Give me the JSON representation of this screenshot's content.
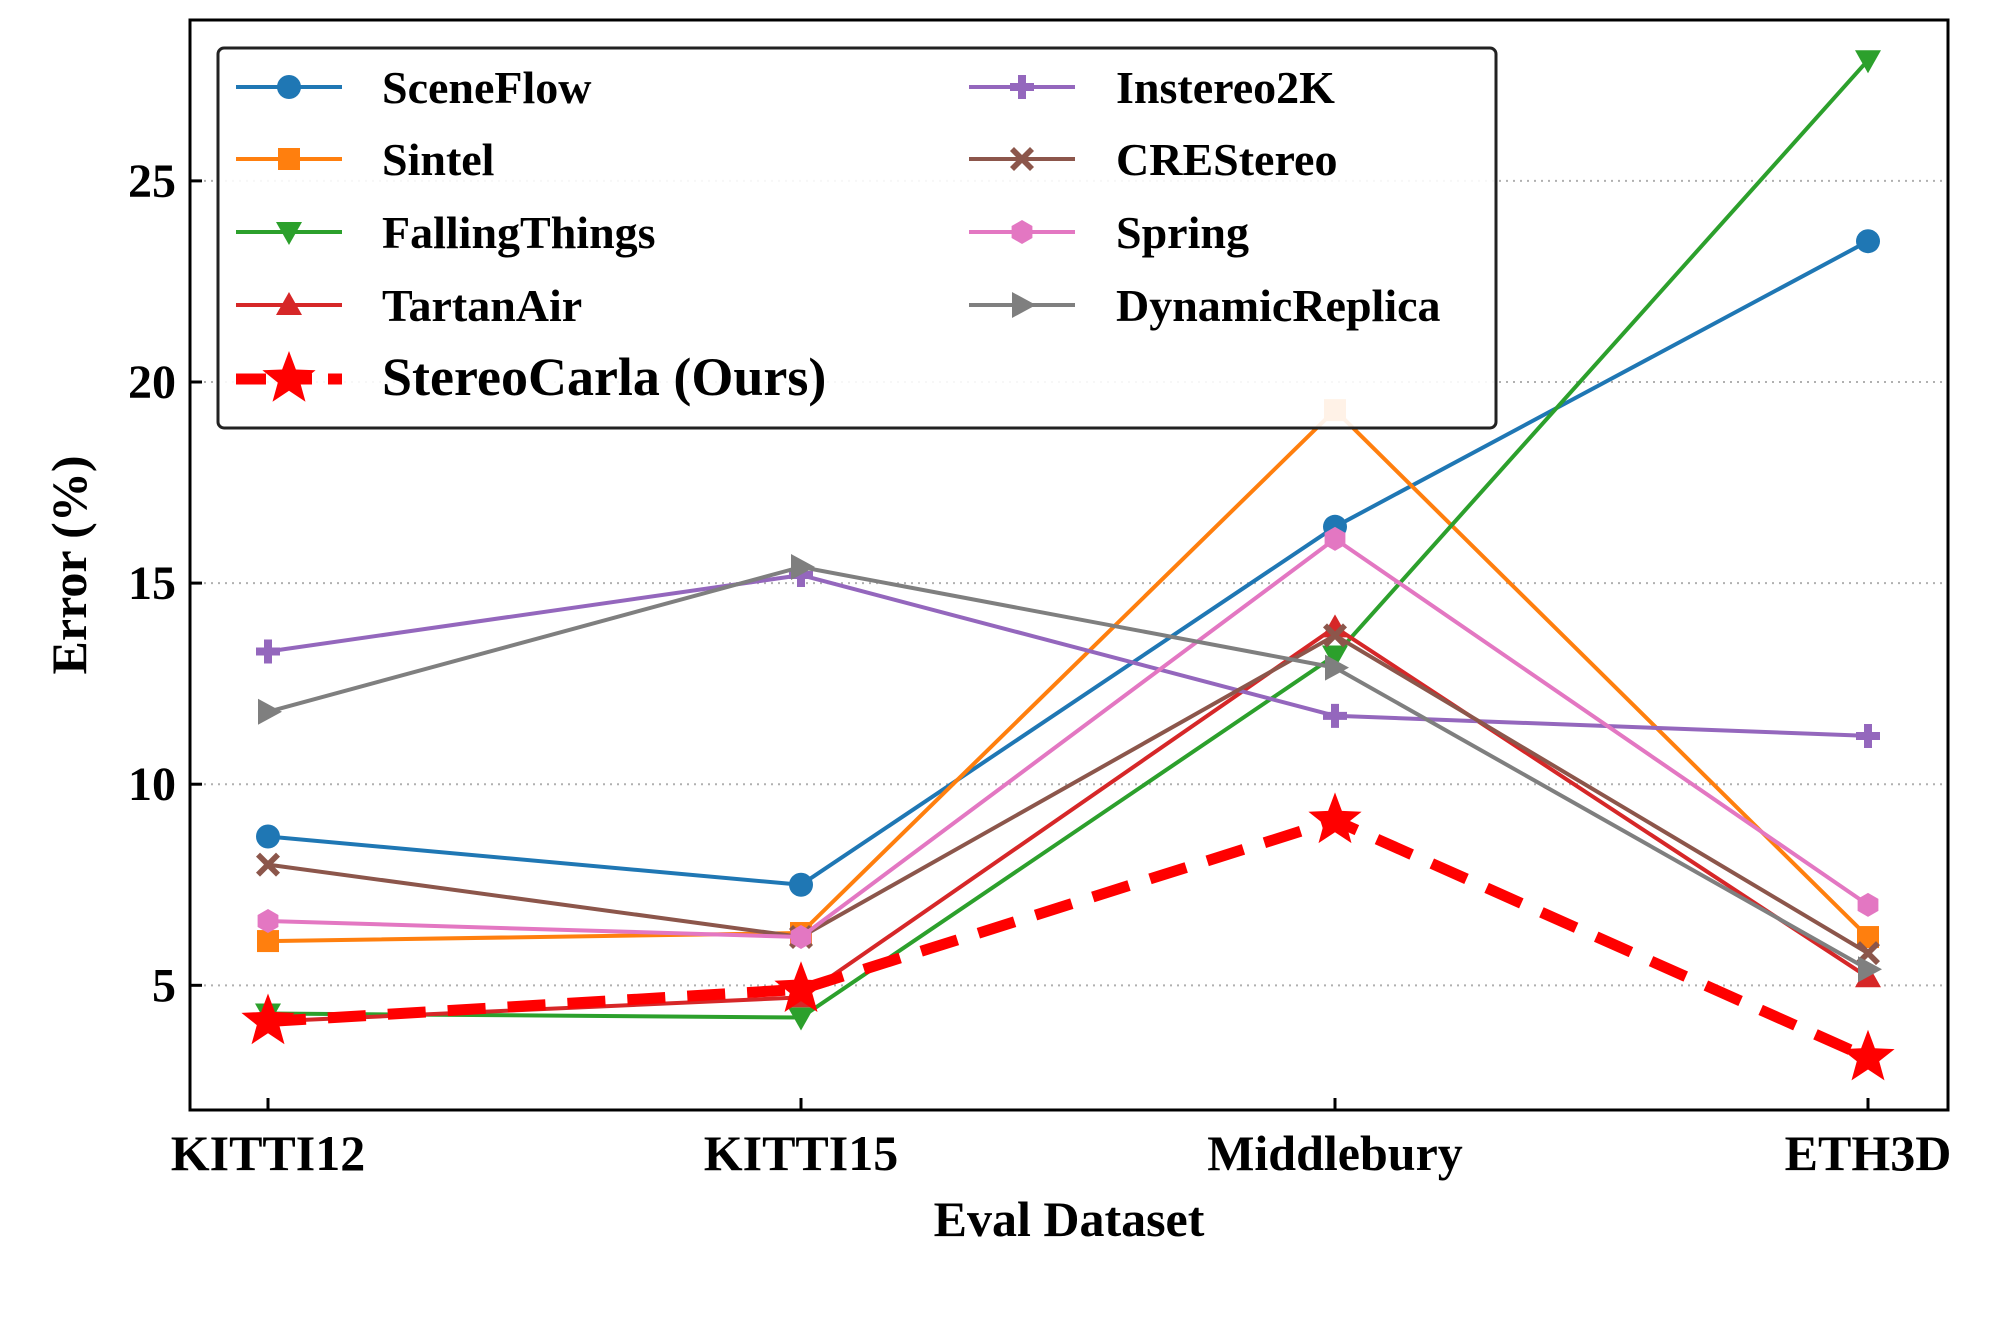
{
  "chart_data": {
    "type": "line",
    "title": "",
    "xlabel": "Eval Dataset",
    "ylabel": "Error (%)",
    "categories": [
      "KITTI12",
      "KITTI15",
      "Middlebury",
      "ETH3D"
    ],
    "ylim": [
      1.9,
      29.0
    ],
    "yticks": [
      5,
      10,
      15,
      20,
      25
    ],
    "grid": "horizontal dotted",
    "legend_position": "top-left",
    "series": [
      {
        "name": "SceneFlow",
        "color": "#1f77b4",
        "marker": "circle",
        "dashed": false,
        "values": [
          8.7,
          7.5,
          16.4,
          23.5
        ]
      },
      {
        "name": "Sintel",
        "color": "#ff7f0e",
        "marker": "square",
        "dashed": false,
        "values": [
          6.1,
          6.3,
          19.3,
          6.2
        ]
      },
      {
        "name": "FallingThings",
        "color": "#2ca02c",
        "marker": "triangle-down",
        "dashed": false,
        "values": [
          4.3,
          4.2,
          13.2,
          28.0
        ]
      },
      {
        "name": "TartanAir",
        "color": "#d62728",
        "marker": "triangle-up",
        "dashed": false,
        "values": [
          4.1,
          4.7,
          13.9,
          5.2
        ]
      },
      {
        "name": "StereoCarla (Ours)",
        "color": "#ff0000",
        "marker": "star",
        "dashed": true,
        "values": [
          4.1,
          4.9,
          9.1,
          3.2
        ]
      },
      {
        "name": "Instereo2K",
        "color": "#9467bd",
        "marker": "plus",
        "dashed": false,
        "values": [
          13.3,
          15.2,
          11.7,
          11.2
        ]
      },
      {
        "name": "CREStereo",
        "color": "#8c564b",
        "marker": "x",
        "dashed": false,
        "values": [
          8.0,
          6.2,
          13.7,
          5.8
        ]
      },
      {
        "name": "Spring",
        "color": "#e377c2",
        "marker": "hexagon",
        "dashed": false,
        "values": [
          6.6,
          6.2,
          16.1,
          7.0
        ]
      },
      {
        "name": "DynamicReplica",
        "color": "#7f7f7f",
        "marker": "triangle-right",
        "dashed": false,
        "values": [
          11.8,
          15.4,
          12.9,
          5.4
        ]
      }
    ]
  }
}
